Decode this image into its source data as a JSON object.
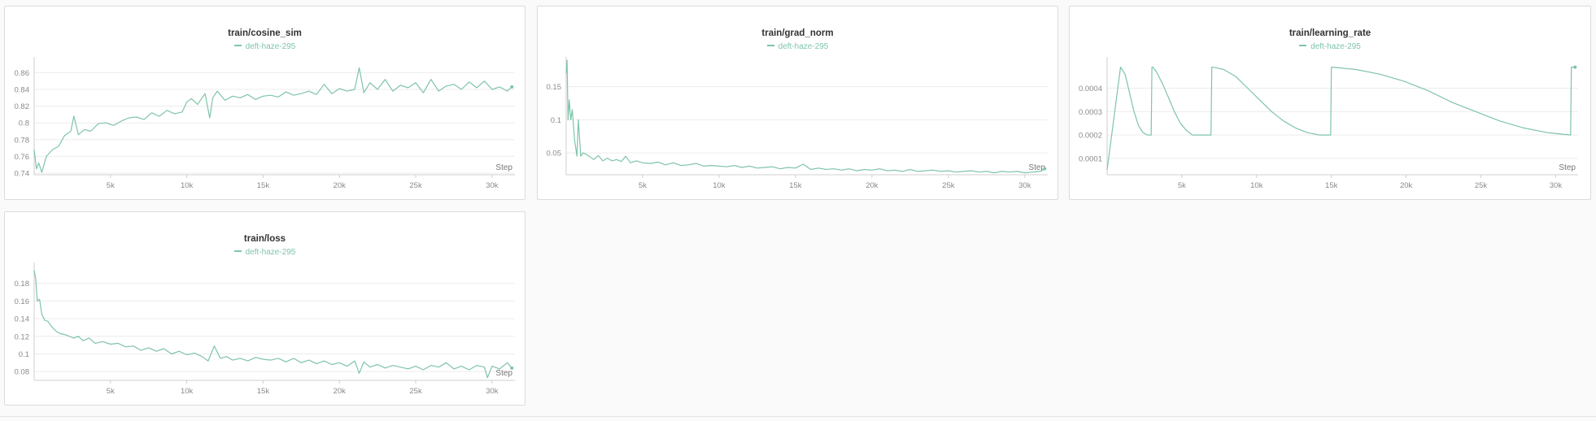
{
  "colors": {
    "series": "#7fc4a8",
    "grid": "#ececec",
    "axis": "#cfcfcf",
    "tick_text": "#8a8a8a"
  },
  "panels": [
    {
      "title": "train/cosine_sim",
      "legend": "deft-haze-295"
    },
    {
      "title": "train/grad_norm",
      "legend": "deft-haze-295"
    },
    {
      "title": "train/learning_rate",
      "legend": "deft-haze-295"
    },
    {
      "title": "train/loss",
      "legend": "deft-haze-295"
    }
  ],
  "chart_data": [
    {
      "type": "line",
      "title": "train/cosine_sim",
      "xlabel": "Step",
      "xlim": [
        0,
        31500
      ],
      "ylim": [
        0.738,
        0.875
      ],
      "xticks": [
        5000,
        10000,
        15000,
        20000,
        25000,
        30000
      ],
      "xtick_labels": [
        "5k",
        "10k",
        "15k",
        "20k",
        "25k",
        "30k"
      ],
      "yticks": [
        0.74,
        0.76,
        0.78,
        0.8,
        0.82,
        0.84,
        0.86
      ],
      "ytick_labels": [
        "0.74",
        "0.76",
        "0.78",
        "0.8",
        "0.82",
        "0.84",
        "0.86"
      ],
      "grid": true,
      "series": [
        {
          "name": "deft-haze-295",
          "x": [
            0,
            150,
            300,
            500,
            800,
            1200,
            1600,
            2000,
            2400,
            2600,
            2900,
            3300,
            3700,
            4200,
            4700,
            5200,
            5700,
            6200,
            6700,
            7200,
            7700,
            8200,
            8700,
            9200,
            9700,
            10000,
            10300,
            10700,
            11200,
            11500,
            11700,
            12000,
            12500,
            13000,
            13500,
            14000,
            14500,
            15000,
            15500,
            16000,
            16500,
            17000,
            17500,
            18000,
            18500,
            19000,
            19500,
            20000,
            20500,
            21000,
            21300,
            21600,
            22000,
            22500,
            23000,
            23500,
            24000,
            24500,
            25000,
            25500,
            26000,
            26500,
            27000,
            27500,
            28000,
            28500,
            29000,
            29500,
            30000,
            30500,
            31000,
            31300
          ],
          "y": [
            0.768,
            0.745,
            0.752,
            0.741,
            0.76,
            0.768,
            0.772,
            0.785,
            0.79,
            0.808,
            0.786,
            0.792,
            0.79,
            0.799,
            0.8,
            0.797,
            0.802,
            0.806,
            0.807,
            0.804,
            0.812,
            0.808,
            0.815,
            0.811,
            0.813,
            0.825,
            0.829,
            0.822,
            0.835,
            0.806,
            0.83,
            0.838,
            0.827,
            0.832,
            0.83,
            0.834,
            0.828,
            0.832,
            0.833,
            0.831,
            0.837,
            0.833,
            0.835,
            0.838,
            0.834,
            0.846,
            0.835,
            0.841,
            0.838,
            0.84,
            0.866,
            0.836,
            0.848,
            0.84,
            0.852,
            0.838,
            0.845,
            0.842,
            0.848,
            0.836,
            0.852,
            0.838,
            0.844,
            0.846,
            0.84,
            0.849,
            0.842,
            0.85,
            0.84,
            0.843,
            0.838,
            0.843
          ]
        }
      ]
    },
    {
      "type": "line",
      "title": "train/grad_norm",
      "xlabel": "Step",
      "xlim": [
        0,
        31500
      ],
      "ylim": [
        0.017,
        0.19
      ],
      "xticks": [
        5000,
        10000,
        15000,
        20000,
        25000,
        30000
      ],
      "xtick_labels": [
        "5k",
        "10k",
        "15k",
        "20k",
        "25k",
        "30k"
      ],
      "yticks": [
        0.05,
        0.1,
        0.15
      ],
      "ytick_labels": [
        "0.05",
        "0.1",
        "0.15"
      ],
      "grid": true,
      "series": [
        {
          "name": "deft-haze-295",
          "x": [
            0,
            60,
            120,
            200,
            300,
            400,
            550,
            700,
            800,
            950,
            1100,
            1300,
            1500,
            1800,
            2100,
            2400,
            2700,
            3000,
            3300,
            3600,
            3900,
            4200,
            4600,
            5000,
            5500,
            6000,
            6500,
            7000,
            7500,
            8000,
            8500,
            9000,
            9500,
            10000,
            10500,
            11000,
            11500,
            12000,
            12500,
            13000,
            13500,
            14000,
            14500,
            15000,
            15500,
            16000,
            16500,
            17000,
            17500,
            18000,
            18500,
            19000,
            19500,
            20000,
            20500,
            21000,
            21500,
            22000,
            22500,
            23000,
            23500,
            24000,
            24500,
            25000,
            25500,
            26000,
            26500,
            27000,
            27500,
            28000,
            28500,
            29000,
            29500,
            30000,
            30500,
            31000,
            31300
          ],
          "y": [
            0.17,
            0.19,
            0.1,
            0.13,
            0.1,
            0.115,
            0.07,
            0.045,
            0.1,
            0.045,
            0.05,
            0.048,
            0.045,
            0.04,
            0.046,
            0.038,
            0.042,
            0.038,
            0.04,
            0.037,
            0.045,
            0.035,
            0.038,
            0.035,
            0.034,
            0.036,
            0.032,
            0.035,
            0.031,
            0.032,
            0.034,
            0.03,
            0.031,
            0.03,
            0.029,
            0.031,
            0.028,
            0.03,
            0.027,
            0.028,
            0.029,
            0.026,
            0.028,
            0.027,
            0.033,
            0.025,
            0.027,
            0.025,
            0.026,
            0.024,
            0.026,
            0.023,
            0.025,
            0.024,
            0.026,
            0.023,
            0.024,
            0.022,
            0.025,
            0.022,
            0.023,
            0.024,
            0.022,
            0.023,
            0.021,
            0.022,
            0.023,
            0.021,
            0.022,
            0.02,
            0.022,
            0.021,
            0.022,
            0.02,
            0.021,
            0.022,
            0.026
          ]
        }
      ]
    },
    {
      "type": "line",
      "title": "train/learning_rate",
      "xlabel": "Step",
      "xlim": [
        0,
        31500
      ],
      "ylim": [
        3e-05,
        0.00052
      ],
      "xticks": [
        5000,
        10000,
        15000,
        20000,
        25000,
        30000
      ],
      "xtick_labels": [
        "5k",
        "10k",
        "15k",
        "20k",
        "25k",
        "30k"
      ],
      "yticks": [
        0.0001,
        0.0002,
        0.0003,
        0.0004
      ],
      "ytick_labels": [
        "0.0001",
        "0.0002",
        "0.0003",
        "0.0004"
      ],
      "grid": true,
      "series": [
        {
          "name": "deft-haze-295",
          "x": [
            0,
            900,
            1200,
            1500,
            1800,
            2100,
            2400,
            2700,
            2950,
            3000,
            3050,
            3300,
            3700,
            4100,
            4500,
            4900,
            5300,
            5700,
            6100,
            6500,
            6950,
            7000,
            7050,
            7800,
            8600,
            9400,
            10200,
            11000,
            11800,
            12600,
            13400,
            14200,
            14950,
            15000,
            15050,
            16650,
            18250,
            19850,
            21450,
            23050,
            24650,
            26250,
            27850,
            29450,
            31000,
            31050,
            31300
          ],
          "y": [
            5e-05,
            0.00049,
            0.00046,
            0.00038,
            0.0003,
            0.00024,
            0.00021,
            0.0002,
            0.0002,
            0.00049,
            0.00049,
            0.00047,
            0.00042,
            0.00036,
            0.0003,
            0.00025,
            0.00022,
            0.0002,
            0.0002,
            0.0002,
            0.0002,
            0.00049,
            0.00049,
            0.00048,
            0.00045,
            0.0004,
            0.00035,
            0.0003,
            0.00026,
            0.00023,
            0.00021,
            0.0002,
            0.0002,
            0.00049,
            0.00049,
            0.00048,
            0.00046,
            0.00043,
            0.00039,
            0.00034,
            0.0003,
            0.00026,
            0.00023,
            0.00021,
            0.0002,
            0.00049,
            0.00049
          ]
        }
      ]
    },
    {
      "type": "line",
      "title": "train/loss",
      "xlabel": "Step",
      "xlim": [
        0,
        31500
      ],
      "ylim": [
        0.07,
        0.2
      ],
      "xticks": [
        5000,
        10000,
        15000,
        20000,
        25000,
        30000
      ],
      "xtick_labels": [
        "5k",
        "10k",
        "15k",
        "20k",
        "25k",
        "30k"
      ],
      "yticks": [
        0.08,
        0.1,
        0.12,
        0.14,
        0.16,
        0.18
      ],
      "ytick_labels": [
        "0.08",
        "0.1",
        "0.12",
        "0.14",
        "0.16",
        "0.18"
      ],
      "grid": true,
      "series": [
        {
          "name": "deft-haze-295",
          "x": [
            0,
            100,
            200,
            350,
            500,
            700,
            900,
            1100,
            1300,
            1500,
            1700,
            2000,
            2300,
            2600,
            2900,
            3200,
            3600,
            4000,
            4500,
            5000,
            5500,
            6000,
            6500,
            7000,
            7500,
            8000,
            8500,
            9000,
            9500,
            10000,
            10500,
            11000,
            11400,
            11800,
            12200,
            12600,
            13000,
            13500,
            14000,
            14500,
            15000,
            15500,
            16000,
            16500,
            17000,
            17500,
            18000,
            18500,
            19000,
            19500,
            20000,
            20500,
            21000,
            21300,
            21600,
            22000,
            22500,
            23000,
            23500,
            24000,
            24500,
            25000,
            25500,
            26000,
            26500,
            27000,
            27500,
            28000,
            28500,
            29000,
            29500,
            29700,
            30000,
            30500,
            31000,
            31300
          ],
          "y": [
            0.195,
            0.185,
            0.16,
            0.162,
            0.145,
            0.138,
            0.137,
            0.132,
            0.128,
            0.125,
            0.123,
            0.122,
            0.12,
            0.118,
            0.12,
            0.115,
            0.118,
            0.112,
            0.114,
            0.111,
            0.112,
            0.108,
            0.109,
            0.104,
            0.107,
            0.103,
            0.106,
            0.1,
            0.103,
            0.099,
            0.101,
            0.097,
            0.092,
            0.109,
            0.095,
            0.097,
            0.093,
            0.095,
            0.092,
            0.096,
            0.094,
            0.093,
            0.095,
            0.091,
            0.095,
            0.09,
            0.093,
            0.089,
            0.092,
            0.088,
            0.09,
            0.086,
            0.092,
            0.078,
            0.091,
            0.085,
            0.088,
            0.084,
            0.087,
            0.085,
            0.083,
            0.086,
            0.082,
            0.087,
            0.085,
            0.09,
            0.083,
            0.086,
            0.082,
            0.087,
            0.085,
            0.073,
            0.086,
            0.083,
            0.09,
            0.084
          ]
        }
      ]
    }
  ]
}
